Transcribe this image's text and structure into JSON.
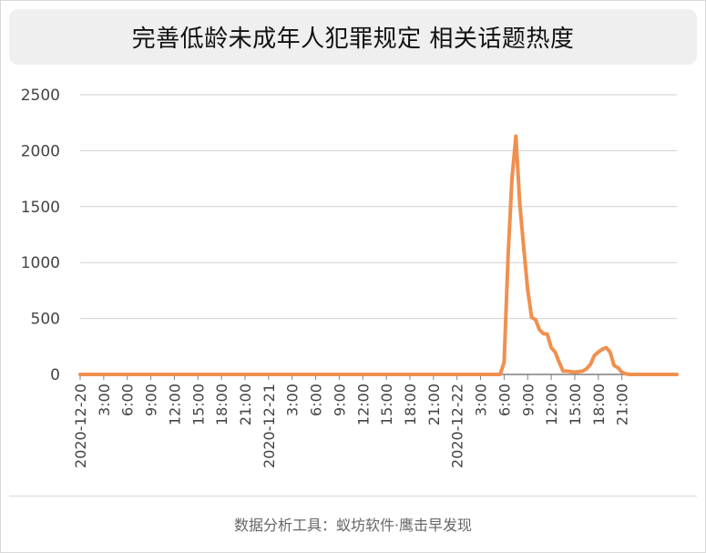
{
  "title": "完善低龄未成年人犯罪规定 相关话题热度",
  "footer": "数据分析工具：蚁坊软件·鹰击早发现",
  "colors": {
    "line": "#F0904E",
    "grid": "#d0d0d0",
    "baseline": "#7f7f7f",
    "text": "#444444"
  },
  "chart_data": {
    "type": "line",
    "title": "完善低龄未成年人犯罪规定 相关话题热度",
    "xlabel": "",
    "ylabel": "",
    "ylim": [
      0,
      2500
    ],
    "yticks": [
      0,
      500,
      1000,
      1500,
      2000,
      2500
    ],
    "grid": true,
    "legend": "none",
    "x_tick_labels": [
      "2020-12-20",
      "3:00",
      "6:00",
      "9:00",
      "12:00",
      "15:00",
      "18:00",
      "21:00",
      "2020-12-21",
      "3:00",
      "6:00",
      "9:00",
      "12:00",
      "15:00",
      "18:00",
      "21:00",
      "2020-12-22",
      "3:00",
      "6:00",
      "9:00",
      "12:00",
      "15:00",
      "18:00",
      "21:00"
    ],
    "series": [
      {
        "values": [
          0,
          0,
          0,
          0,
          0,
          0,
          0,
          0,
          0,
          0,
          0,
          0,
          0,
          0,
          0,
          0,
          0,
          0,
          0,
          0,
          0,
          0,
          0,
          0,
          0,
          0,
          0,
          0,
          0,
          0,
          0,
          0,
          0,
          0,
          0,
          0,
          0,
          0,
          0,
          0,
          0,
          0,
          0,
          0,
          0,
          0,
          0,
          0,
          0,
          0,
          0,
          0,
          0,
          0,
          0,
          0,
          0,
          0,
          0,
          0,
          0,
          0,
          0,
          0,
          0,
          0,
          0,
          0,
          0,
          0,
          0,
          0,
          0,
          0,
          0,
          0,
          0,
          0,
          0,
          0,
          0,
          0,
          0,
          0,
          0,
          0,
          0,
          0,
          0,
          0,
          0,
          0,
          0,
          0,
          0,
          0,
          0,
          0,
          0,
          0,
          0,
          0,
          0,
          0,
          0,
          0,
          0,
          0,
          110,
          1050,
          1750,
          2130,
          1520,
          1130,
          760,
          510,
          490,
          400,
          365,
          360,
          240,
          200,
          110,
          30,
          30,
          25,
          20,
          25,
          30,
          50,
          90,
          170,
          200,
          225,
          240,
          200,
          80,
          60,
          20,
          5,
          0,
          0,
          0,
          0,
          0,
          0,
          0,
          0,
          0,
          0,
          0,
          0,
          0
        ]
      }
    ]
  }
}
